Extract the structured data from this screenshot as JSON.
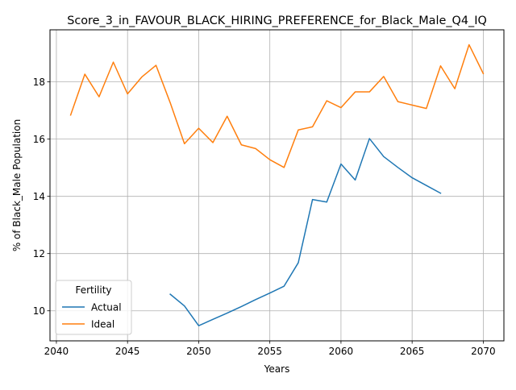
{
  "chart_data": {
    "type": "line",
    "title": "Score_3_in_FAVOUR_BLACK_HIRING_PREFERENCE_for_Black_Male_Q4_IQ",
    "xlabel": "Years",
    "ylabel": "% of Black_Male Population",
    "xlim": [
      2039.55,
      2071.45
    ],
    "ylim": [
      8.95,
      19.82
    ],
    "xticks": [
      2040,
      2045,
      2050,
      2055,
      2060,
      2065,
      2070
    ],
    "yticks": [
      10,
      12,
      14,
      16,
      18
    ],
    "grid": true,
    "legend": {
      "title": "Fertility",
      "placement": "lower-left"
    },
    "series": [
      {
        "name": "Actual",
        "color": "#1f77b4",
        "x": [
          2048,
          2049,
          2050,
          2051,
          2052,
          2053,
          2054,
          2055,
          2056,
          2057,
          2058,
          2059,
          2060,
          2061,
          2062,
          2063,
          2064,
          2065,
          2066,
          2067
        ],
        "y": [
          10.58,
          10.17,
          9.48,
          9.7,
          9.92,
          10.15,
          10.39,
          10.62,
          10.86,
          11.68,
          13.89,
          13.8,
          15.13,
          14.57,
          16.02,
          15.39,
          15.01,
          14.65,
          14.38,
          14.11
        ]
      },
      {
        "name": "Ideal",
        "color": "#ff7f0e",
        "x": [
          2041,
          2042,
          2043,
          2044,
          2045,
          2046,
          2047,
          2048,
          2049,
          2050,
          2051,
          2052,
          2053,
          2054,
          2055,
          2056,
          2057,
          2058,
          2059,
          2060,
          2061,
          2062,
          2063,
          2064,
          2065,
          2066,
          2067,
          2068,
          2069,
          2070
        ],
        "y": [
          16.84,
          18.27,
          17.48,
          18.69,
          17.58,
          18.17,
          18.58,
          17.27,
          15.84,
          16.38,
          15.88,
          16.8,
          15.8,
          15.67,
          15.28,
          15.01,
          16.32,
          16.43,
          17.34,
          17.1,
          17.65,
          17.65,
          18.19,
          17.31,
          17.19,
          17.07,
          18.56,
          17.76,
          19.3,
          18.29
        ]
      }
    ]
  }
}
